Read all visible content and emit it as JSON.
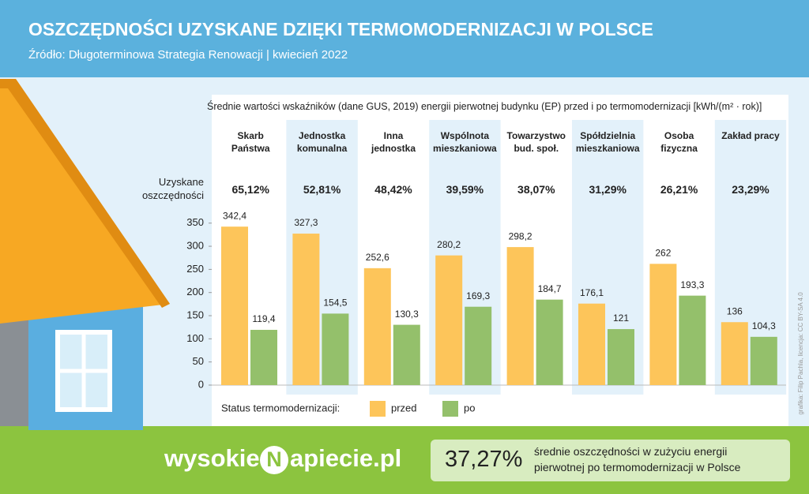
{
  "header": {
    "title": "OSZCZĘDNOŚCI UZYSKANE DZIĘKI TERMOMODERNIZACJI W POLSCE",
    "subtitle": "Źródło: Długoterminowa Strategia Renowacji | kwiecień 2022"
  },
  "chart_data": {
    "type": "bar",
    "subtitle": "Średnie wartości wskaźników (dane GUS, 2019) energii pierwotnej budynku (EP) przed i po termomodernizacji [kWh/(m² · rok)]",
    "categories": [
      "Skarb Państwa",
      "Jednostka komunalna",
      "Inna jednostka",
      "Wspólnota mieszkaniowa",
      "Towarzystwo bud. społ.",
      "Spółdzielnia mieszkaniowa",
      "Osoba fizyczna",
      "Zakład pracy"
    ],
    "savings_title": "Uzyskane oszczędności",
    "savings": [
      65.12,
      52.81,
      48.42,
      39.59,
      38.07,
      31.29,
      26.21,
      23.29
    ],
    "savings_labels": [
      "65,12%",
      "52,81%",
      "48,42%",
      "39,59%",
      "38,07%",
      "31,29%",
      "26,21%",
      "23,29%"
    ],
    "legend_title": "Status termomodernizacji:",
    "series": [
      {
        "name": "przed",
        "color": "#fdc55a",
        "values": [
          342.4,
          327.3,
          252.6,
          280.2,
          298.2,
          176.1,
          262,
          136
        ],
        "value_labels": [
          "342,4",
          "327,3",
          "252,6",
          "280,2",
          "298,2",
          "176,1",
          "262",
          "136"
        ]
      },
      {
        "name": "po",
        "color": "#94c06b",
        "values": [
          119.4,
          154.5,
          130.3,
          169.3,
          184.7,
          121,
          193.3,
          104.3
        ],
        "value_labels": [
          "119,4",
          "154,5",
          "130,3",
          "169,3",
          "184,7",
          "121",
          "193,3",
          "104,3"
        ]
      }
    ],
    "ylim": [
      0,
      370
    ],
    "yticks": [
      0,
      50,
      100,
      150,
      200,
      250,
      300,
      350
    ]
  },
  "credit": "grafika: Filip Pachla, licencja: CC BY-SA 4.0",
  "logo": {
    "left": "wysokie",
    "mark": "N",
    "right": "apiecie.pl"
  },
  "footer": {
    "value": "37,27%",
    "text": "średnie oszczędności w zużyciu energii pierwotnej po termomodernizacji w Polsce"
  }
}
